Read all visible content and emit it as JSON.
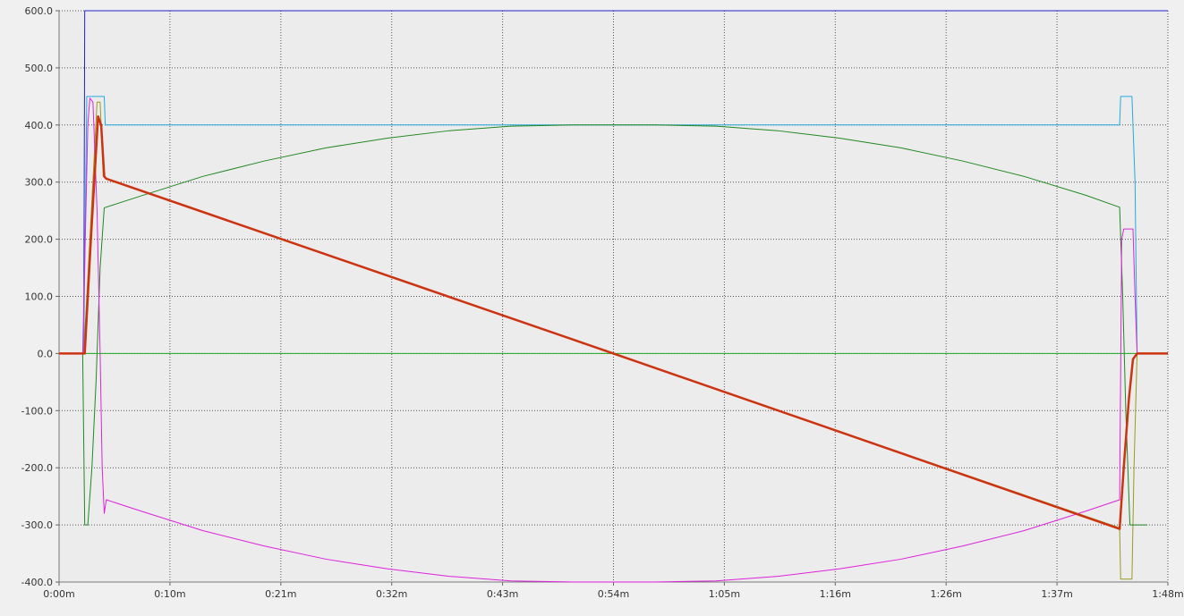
{
  "chart_data": {
    "type": "line",
    "title": "",
    "xlabel": "",
    "ylabel": "",
    "xlim": [
      0,
      108
    ],
    "ylim": [
      -400,
      600
    ],
    "grid": true,
    "legend": "none",
    "x_ticks": [
      {
        "value": 0,
        "label": "0:00m"
      },
      {
        "value": 10.8,
        "label": "0:10m"
      },
      {
        "value": 21.6,
        "label": "0:21m"
      },
      {
        "value": 32.4,
        "label": "0:32m"
      },
      {
        "value": 43.2,
        "label": "0:43m"
      },
      {
        "value": 54,
        "label": "0:54m"
      },
      {
        "value": 64.8,
        "label": "1:05m"
      },
      {
        "value": 75.6,
        "label": "1:16m"
      },
      {
        "value": 86.4,
        "label": "1:26m"
      },
      {
        "value": 97.2,
        "label": "1:37m"
      },
      {
        "value": 108,
        "label": "1:48m"
      }
    ],
    "y_ticks": [
      {
        "value": 600,
        "label": "600.0"
      },
      {
        "value": 500,
        "label": "500.0"
      },
      {
        "value": 400,
        "label": "400.0"
      },
      {
        "value": 300,
        "label": "300.0"
      },
      {
        "value": 200,
        "label": "200.0"
      },
      {
        "value": 100,
        "label": "100.0"
      },
      {
        "value": 0,
        "label": "0.0"
      },
      {
        "value": -100,
        "label": "-100.0"
      },
      {
        "value": -200,
        "label": "-200.0"
      },
      {
        "value": -300,
        "label": "-300.0"
      },
      {
        "value": -400,
        "label": "-400.0"
      }
    ],
    "series": [
      {
        "color": "#2222cc",
        "width": 1,
        "points": [
          [
            0,
            0
          ],
          [
            2.4,
            0
          ],
          [
            2.5,
            600
          ],
          [
            108,
            600
          ]
        ]
      },
      {
        "color": "#22aadd",
        "width": 1,
        "points": [
          [
            0,
            0
          ],
          [
            2.4,
            0
          ],
          [
            2.7,
            450
          ],
          [
            4.4,
            450
          ],
          [
            4.5,
            400
          ],
          [
            103.3,
            400
          ],
          [
            103.4,
            450
          ],
          [
            104.5,
            450
          ],
          [
            104.8,
            300
          ],
          [
            105,
            0
          ],
          [
            108,
            0
          ]
        ]
      },
      {
        "color": "#9a9a20",
        "width": 1,
        "points": [
          [
            0,
            0
          ],
          [
            2.4,
            0
          ],
          [
            3.0,
            200
          ],
          [
            3.7,
            440
          ],
          [
            4.0,
            440
          ],
          [
            4.3,
            310
          ],
          [
            4.6,
            305
          ],
          [
            103.3,
            -305
          ],
          [
            103.4,
            -395
          ],
          [
            104.5,
            -395
          ],
          [
            104.7,
            -200
          ],
          [
            105,
            0
          ],
          [
            108,
            0
          ]
        ]
      },
      {
        "color": "#228822",
        "width": 1,
        "points": [
          [
            0,
            0
          ],
          [
            2.3,
            0
          ],
          [
            2.5,
            -300
          ],
          [
            2.8,
            -300
          ],
          [
            3.2,
            -200
          ],
          [
            3.6,
            -50
          ],
          [
            4.0,
            150
          ],
          [
            4.4,
            255
          ],
          [
            8,
            276
          ],
          [
            14,
            310
          ],
          [
            20,
            337
          ],
          [
            26,
            360
          ],
          [
            32,
            377
          ],
          [
            38,
            390
          ],
          [
            44,
            398
          ],
          [
            50,
            400
          ],
          [
            54,
            400
          ],
          [
            58,
            400
          ],
          [
            64,
            398
          ],
          [
            70,
            390
          ],
          [
            76,
            377
          ],
          [
            82,
            360
          ],
          [
            88,
            337
          ],
          [
            94,
            310
          ],
          [
            100,
            277
          ],
          [
            103.3,
            256
          ],
          [
            103.6,
            100
          ],
          [
            103.9,
            -100
          ],
          [
            104.3,
            -300
          ],
          [
            105.2,
            -300
          ],
          [
            106,
            -300
          ]
        ]
      },
      {
        "color": "#dd22dd",
        "width": 1,
        "points": [
          [
            0,
            0
          ],
          [
            2.3,
            0
          ],
          [
            2.8,
            400
          ],
          [
            3.0,
            447
          ],
          [
            3.3,
            440
          ],
          [
            3.7,
            250
          ],
          [
            4.0,
            0
          ],
          [
            4.2,
            -200
          ],
          [
            4.4,
            -280
          ],
          [
            4.6,
            -256
          ],
          [
            8,
            -276
          ],
          [
            14,
            -310
          ],
          [
            20,
            -337
          ],
          [
            26,
            -360
          ],
          [
            32,
            -377
          ],
          [
            38,
            -390
          ],
          [
            44,
            -398
          ],
          [
            50,
            -400
          ],
          [
            54,
            -400
          ],
          [
            58,
            -400
          ],
          [
            64,
            -398
          ],
          [
            70,
            -390
          ],
          [
            76,
            -377
          ],
          [
            82,
            -360
          ],
          [
            88,
            -337
          ],
          [
            94,
            -310
          ],
          [
            100,
            -276
          ],
          [
            103.3,
            -256
          ],
          [
            103.5,
            200
          ],
          [
            103.7,
            218
          ],
          [
            104.6,
            218
          ],
          [
            104.8,
            100
          ],
          [
            105,
            0
          ],
          [
            108,
            0
          ]
        ]
      },
      {
        "color": "#22aa22",
        "width": 1,
        "points": [
          [
            0,
            0
          ],
          [
            108,
            0
          ]
        ]
      },
      {
        "color": "#cc3311",
        "width": 2.5,
        "points": [
          [
            0,
            0
          ],
          [
            2.5,
            0
          ],
          [
            3.1,
            200
          ],
          [
            3.8,
            415
          ],
          [
            4.1,
            400
          ],
          [
            4.4,
            310
          ],
          [
            4.6,
            306
          ],
          [
            54,
            0
          ],
          [
            103.3,
            -307
          ],
          [
            103.7,
            -200
          ],
          [
            104.2,
            -80
          ],
          [
            104.6,
            -10
          ],
          [
            105,
            0
          ],
          [
            108,
            0
          ]
        ]
      }
    ]
  }
}
